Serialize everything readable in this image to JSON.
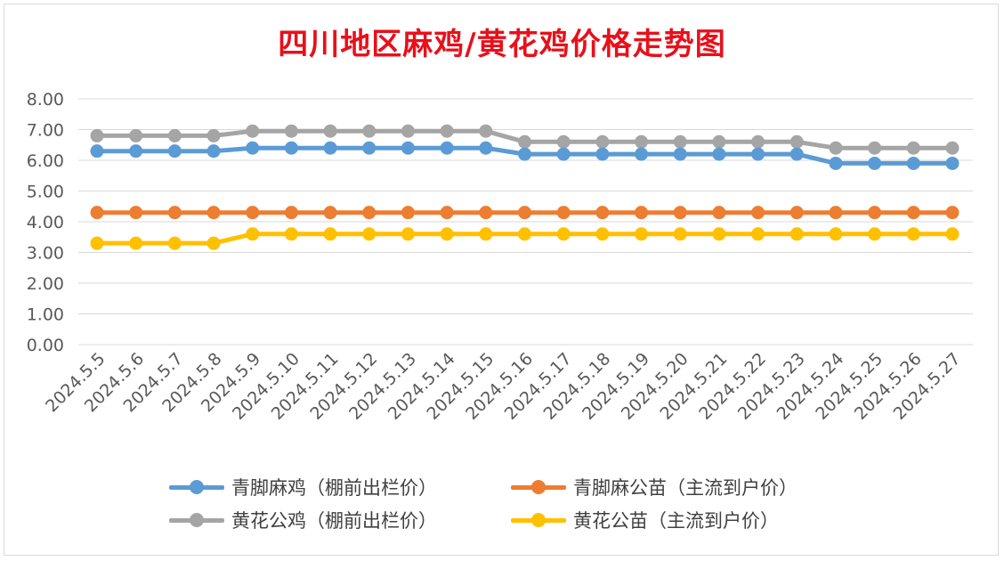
{
  "chart_data": {
    "type": "line",
    "title": "四川地区麻鸡/黄花鸡价格走势图",
    "categories": [
      "2024.5.5",
      "2024.5.6",
      "2024.5.7",
      "2024.5.8",
      "2024.5.9",
      "2024.5.10",
      "2024.5.11",
      "2024.5.12",
      "2024.5.13",
      "2024.5.14",
      "2024.5.15",
      "2024.5.16",
      "2024.5.17",
      "2024.5.18",
      "2024.5.19",
      "2024.5.20",
      "2024.5.21",
      "2024.5.22",
      "2024.5.23",
      "2024.5.24",
      "2024.5.25",
      "2024.5.26",
      "2024.5.27"
    ],
    "ylim": [
      0,
      8
    ],
    "yticks": [
      "0.00",
      "1.00",
      "2.00",
      "3.00",
      "4.00",
      "5.00",
      "6.00",
      "7.00",
      "8.00"
    ],
    "grid": true,
    "legend_position": "bottom",
    "series": [
      {
        "name": "青脚麻鸡（棚前出栏价）",
        "color": "#5b9bd5",
        "values": [
          6.3,
          6.3,
          6.3,
          6.3,
          6.4,
          6.4,
          6.4,
          6.4,
          6.4,
          6.4,
          6.4,
          6.2,
          6.2,
          6.2,
          6.2,
          6.2,
          6.2,
          6.2,
          6.2,
          5.9,
          5.9,
          5.9,
          5.9
        ]
      },
      {
        "name": "青脚麻公苗（主流到户价）",
        "color": "#ed7d31",
        "values": [
          4.3,
          4.3,
          4.3,
          4.3,
          4.3,
          4.3,
          4.3,
          4.3,
          4.3,
          4.3,
          4.3,
          4.3,
          4.3,
          4.3,
          4.3,
          4.3,
          4.3,
          4.3,
          4.3,
          4.3,
          4.3,
          4.3,
          4.3
        ]
      },
      {
        "name": "黄花公鸡（棚前出栏价）",
        "color": "#a5a5a5",
        "values": [
          6.8,
          6.8,
          6.8,
          6.8,
          6.95,
          6.95,
          6.95,
          6.95,
          6.95,
          6.95,
          6.95,
          6.6,
          6.6,
          6.6,
          6.6,
          6.6,
          6.6,
          6.6,
          6.6,
          6.4,
          6.4,
          6.4,
          6.4
        ]
      },
      {
        "name": "黄花公苗（主流到户价）",
        "color": "#ffc000",
        "values": [
          3.3,
          3.3,
          3.3,
          3.3,
          3.6,
          3.6,
          3.6,
          3.6,
          3.6,
          3.6,
          3.6,
          3.6,
          3.6,
          3.6,
          3.6,
          3.6,
          3.6,
          3.6,
          3.6,
          3.6,
          3.6,
          3.6,
          3.6
        ]
      }
    ]
  }
}
